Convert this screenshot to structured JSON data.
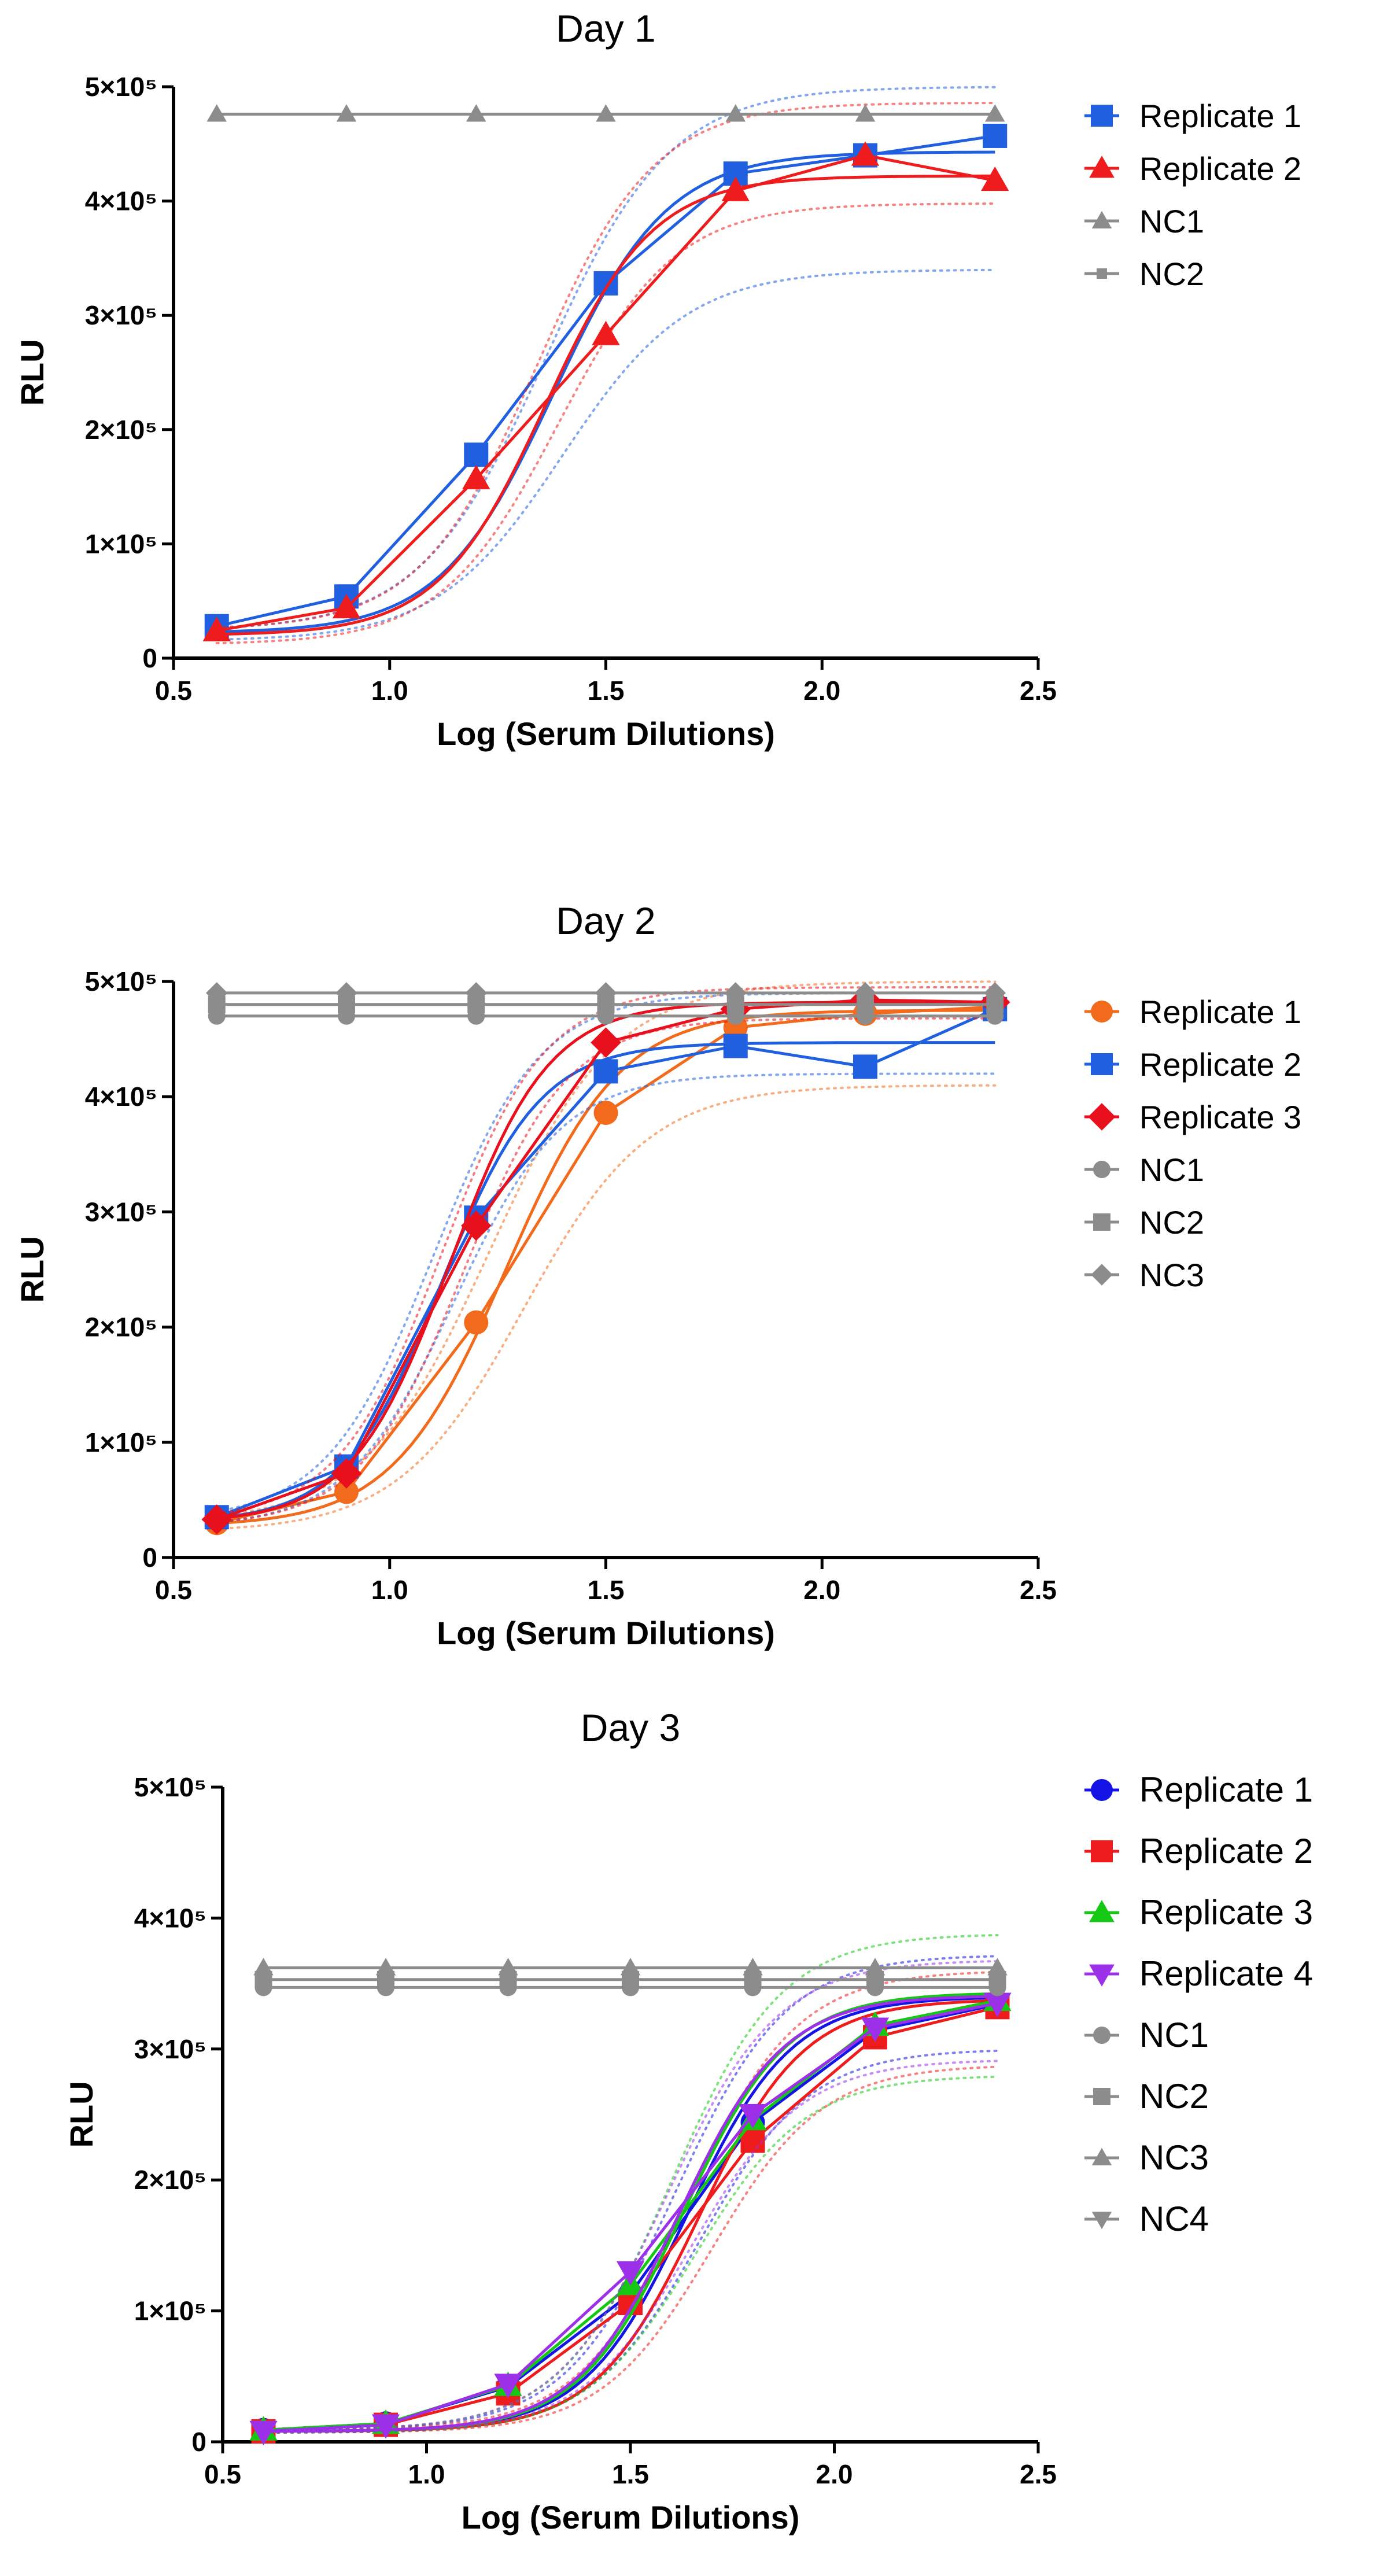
{
  "chart_data": [
    {
      "type": "line",
      "title": "Day 1",
      "xlabel": "Log (Serum Dilutions)",
      "ylabel": "RLU",
      "xlim": [
        0.5,
        2.5
      ],
      "ylim": [
        0,
        500000
      ],
      "x_ticks": [
        0.5,
        1.0,
        1.5,
        2.0,
        2.5
      ],
      "x_tick_labels": [
        "0.5",
        "1.0",
        "1.5",
        "2.0",
        "2.5"
      ],
      "y_ticks": [
        0,
        100000,
        200000,
        300000,
        400000,
        500000
      ],
      "y_tick_labels": [
        "0",
        "1×10⁵",
        "2×10⁵",
        "3×10⁵",
        "4×10⁵",
        "5×10⁵"
      ],
      "legend": "right",
      "series": [
        {
          "name": "Replicate 1",
          "color": "#1f5fe0",
          "marker": "square",
          "x": [
            0.6,
            0.9,
            1.2,
            1.5,
            1.8,
            2.1,
            2.4
          ],
          "y": [
            28000,
            54000,
            178000,
            328000,
            424000,
            440000,
            457000
          ],
          "fit": {
            "bottom": 22000,
            "top": 443000,
            "logec50": 1.38,
            "hill": 3.3
          },
          "ci": {
            "upper": {
              "bottom": 24000,
              "top": 500000,
              "logec50": 1.36,
              "hill": 3.0
            },
            "lower": {
              "bottom": 15000,
              "top": 340000,
              "logec50": 1.4,
              "hill": 3.0
            }
          }
        },
        {
          "name": "Replicate 2",
          "color": "#ee1c1c",
          "marker": "triangle",
          "x": [
            0.6,
            0.9,
            1.2,
            1.5,
            1.8,
            2.1,
            2.4
          ],
          "y": [
            24000,
            44000,
            157000,
            283000,
            409000,
            440000,
            418000
          ],
          "fit": {
            "bottom": 20000,
            "top": 422000,
            "logec50": 1.36,
            "hill": 3.5
          },
          "ci": {
            "upper": {
              "bottom": 25000,
              "top": 486000,
              "logec50": 1.34,
              "hill": 3.2
            },
            "lower": {
              "bottom": 12000,
              "top": 398000,
              "logec50": 1.39,
              "hill": 3.2
            }
          }
        },
        {
          "name": "NC1",
          "color": "#8c8c8c",
          "marker": "triangle",
          "x": [
            0.6,
            0.9,
            1.2,
            1.5,
            1.8,
            2.1,
            2.4
          ],
          "y": [
            476000,
            476000,
            476000,
            476000,
            476000,
            476000,
            476000
          ]
        },
        {
          "name": "NC2",
          "color": "#8c8c8c",
          "marker": "square-small",
          "x": [],
          "y": []
        }
      ]
    },
    {
      "type": "line",
      "title": "Day 2",
      "xlabel": "Log (Serum Dilutions)",
      "ylabel": "RLU",
      "xlim": [
        0.5,
        2.5
      ],
      "ylim": [
        0,
        500000
      ],
      "x_ticks": [
        0.5,
        1.0,
        1.5,
        2.0,
        2.5
      ],
      "x_tick_labels": [
        "0.5",
        "1.0",
        "1.5",
        "2.0",
        "2.5"
      ],
      "y_ticks": [
        0,
        100000,
        200000,
        300000,
        400000,
        500000
      ],
      "y_tick_labels": [
        "0",
        "1×10⁵",
        "2×10⁵",
        "3×10⁵",
        "4×10⁵",
        "5×10⁵"
      ],
      "legend": "right",
      "series": [
        {
          "name": "Replicate 1",
          "color": "#f26b1d",
          "marker": "circle",
          "x": [
            0.6,
            0.9,
            1.2,
            1.5,
            1.8,
            2.1,
            2.4
          ],
          "y": [
            30000,
            57000,
            204000,
            386000,
            460000,
            472000,
            478000
          ],
          "fit": {
            "bottom": 27000,
            "top": 475000,
            "logec50": 1.27,
            "hill": 3.3
          },
          "ci": {
            "upper": {
              "bottom": 30000,
              "top": 500000,
              "logec50": 1.23,
              "hill": 3.0
            },
            "lower": {
              "bottom": 22000,
              "top": 410000,
              "logec50": 1.31,
              "hill": 3.0
            }
          }
        },
        {
          "name": "Replicate 2",
          "color": "#1f5fe0",
          "marker": "square",
          "x": [
            0.6,
            0.9,
            1.2,
            1.5,
            1.8,
            2.1,
            2.4
          ],
          "y": [
            35000,
            79000,
            295000,
            422000,
            444000,
            426000,
            476000
          ],
          "fit": {
            "bottom": 30000,
            "top": 447000,
            "logec50": 1.12,
            "hill": 3.8
          },
          "ci": {
            "upper": {
              "bottom": 32000,
              "top": 490000,
              "logec50": 1.1,
              "hill": 3.5
            },
            "lower": {
              "bottom": 26000,
              "top": 420000,
              "logec50": 1.15,
              "hill": 3.5
            }
          }
        },
        {
          "name": "Replicate 3",
          "color": "#e8101c",
          "marker": "diamond",
          "x": [
            0.6,
            0.9,
            1.2,
            1.5,
            1.8,
            2.1,
            2.4
          ],
          "y": [
            33000,
            73000,
            288000,
            447000,
            476000,
            484000,
            482000
          ],
          "fit": {
            "bottom": 30000,
            "top": 482000,
            "logec50": 1.14,
            "hill": 3.8
          },
          "ci": {
            "upper": {
              "bottom": 32000,
              "top": 495000,
              "logec50": 1.12,
              "hill": 3.6
            },
            "lower": {
              "bottom": 27000,
              "top": 468000,
              "logec50": 1.17,
              "hill": 3.6
            }
          }
        },
        {
          "name": "NC1",
          "color": "#8c8c8c",
          "marker": "circle",
          "x": [
            0.6,
            0.9,
            1.2,
            1.5,
            1.8,
            2.1,
            2.4
          ],
          "y": [
            470000,
            470000,
            470000,
            470000,
            470000,
            470000,
            470000
          ]
        },
        {
          "name": "NC2",
          "color": "#8c8c8c",
          "marker": "square",
          "x": [
            0.6,
            0.9,
            1.2,
            1.5,
            1.8,
            2.1,
            2.4
          ],
          "y": [
            480000,
            480000,
            480000,
            480000,
            480000,
            480000,
            480000
          ]
        },
        {
          "name": "NC3",
          "color": "#8c8c8c",
          "marker": "diamond",
          "x": [
            0.6,
            0.9,
            1.2,
            1.5,
            1.8,
            2.1,
            2.4
          ],
          "y": [
            490000,
            490000,
            490000,
            490000,
            490000,
            490000,
            490000
          ]
        }
      ]
    },
    {
      "type": "line",
      "title": "Day 3",
      "xlabel": "Log (Serum Dilutions)",
      "ylabel": "RLU",
      "xlim": [
        0.5,
        2.5
      ],
      "ylim": [
        0,
        500000
      ],
      "x_ticks": [
        0.5,
        1.0,
        1.5,
        2.0,
        2.5
      ],
      "x_tick_labels": [
        "0.5",
        "1.0",
        "1.5",
        "2.0",
        "2.5"
      ],
      "y_ticks": [
        0,
        100000,
        200000,
        300000,
        400000,
        500000
      ],
      "y_tick_labels": [
        "0",
        "1×10⁵",
        "2×10⁵",
        "3×10⁵",
        "4×10⁵",
        "5×10⁵"
      ],
      "legend": "right",
      "series": [
        {
          "name": "Replicate 1",
          "color": "#1414e6",
          "marker": "circle",
          "x": [
            0.6,
            0.9,
            1.2,
            1.5,
            1.8,
            2.1,
            2.4
          ],
          "y": [
            9000,
            14000,
            42000,
            113000,
            244000,
            314000,
            334000
          ],
          "fit": {
            "bottom": 8000,
            "top": 340000,
            "logec50": 1.64,
            "hill": 3.4
          },
          "ci": {
            "upper": {
              "bottom": 9000,
              "top": 372000,
              "logec50": 1.61,
              "hill": 3.2
            },
            "lower": {
              "bottom": 7000,
              "top": 300000,
              "logec50": 1.67,
              "hill": 3.2
            }
          }
        },
        {
          "name": "Replicate 2",
          "color": "#ee1c1c",
          "marker": "square",
          "x": [
            0.6,
            0.9,
            1.2,
            1.5,
            1.8,
            2.1,
            2.4
          ],
          "y": [
            8000,
            13000,
            37000,
            106000,
            230000,
            309000,
            332000
          ],
          "fit": {
            "bottom": 8000,
            "top": 338000,
            "logec50": 1.67,
            "hill": 3.4
          },
          "ci": {
            "upper": {
              "bottom": 9000,
              "top": 360000,
              "logec50": 1.64,
              "hill": 3.2
            },
            "lower": {
              "bottom": 7000,
              "top": 288000,
              "logec50": 1.7,
              "hill": 3.2
            }
          }
        },
        {
          "name": "Replicate 3",
          "color": "#14c814",
          "marker": "triangle",
          "x": [
            0.6,
            0.9,
            1.2,
            1.5,
            1.8,
            2.1,
            2.4
          ],
          "y": [
            9000,
            14000,
            43000,
            120000,
            246000,
            318000,
            337000
          ],
          "fit": {
            "bottom": 8000,
            "top": 343000,
            "logec50": 1.63,
            "hill": 3.4
          },
          "ci": {
            "upper": {
              "bottom": 9000,
              "top": 388000,
              "logec50": 1.6,
              "hill": 3.2
            },
            "lower": {
              "bottom": 7000,
              "top": 280000,
              "logec50": 1.66,
              "hill": 3.2
            }
          }
        },
        {
          "name": "Replicate 4",
          "color": "#9b30e8",
          "marker": "triangle-down",
          "x": [
            0.6,
            0.9,
            1.2,
            1.5,
            1.8,
            2.1,
            2.4
          ],
          "y": [
            8000,
            13000,
            44000,
            130000,
            250000,
            316000,
            335000
          ],
          "fit": {
            "bottom": 8000,
            "top": 341000,
            "logec50": 1.62,
            "hill": 3.4
          },
          "ci": {
            "upper": {
              "bottom": 9000,
              "top": 368000,
              "logec50": 1.59,
              "hill": 3.2
            },
            "lower": {
              "bottom": 7000,
              "top": 292000,
              "logec50": 1.65,
              "hill": 3.2
            }
          }
        },
        {
          "name": "NC1",
          "color": "#8c8c8c",
          "marker": "circle",
          "x": [
            0.6,
            0.9,
            1.2,
            1.5,
            1.8,
            2.1,
            2.4
          ],
          "y": [
            347000,
            347000,
            347000,
            347000,
            347000,
            347000,
            347000
          ]
        },
        {
          "name": "NC2",
          "color": "#8c8c8c",
          "marker": "square",
          "x": [
            0.6,
            0.9,
            1.2,
            1.5,
            1.8,
            2.1,
            2.4
          ],
          "y": [
            353000,
            353000,
            353000,
            353000,
            353000,
            353000,
            353000
          ]
        },
        {
          "name": "NC3",
          "color": "#8c8c8c",
          "marker": "triangle",
          "x": [
            0.6,
            0.9,
            1.2,
            1.5,
            1.8,
            2.1,
            2.4
          ],
          "y": [
            362000,
            362000,
            362000,
            362000,
            362000,
            362000,
            362000
          ]
        },
        {
          "name": "NC4",
          "color": "#8c8c8c",
          "marker": "triangle-down",
          "x": [],
          "y": []
        }
      ]
    }
  ]
}
